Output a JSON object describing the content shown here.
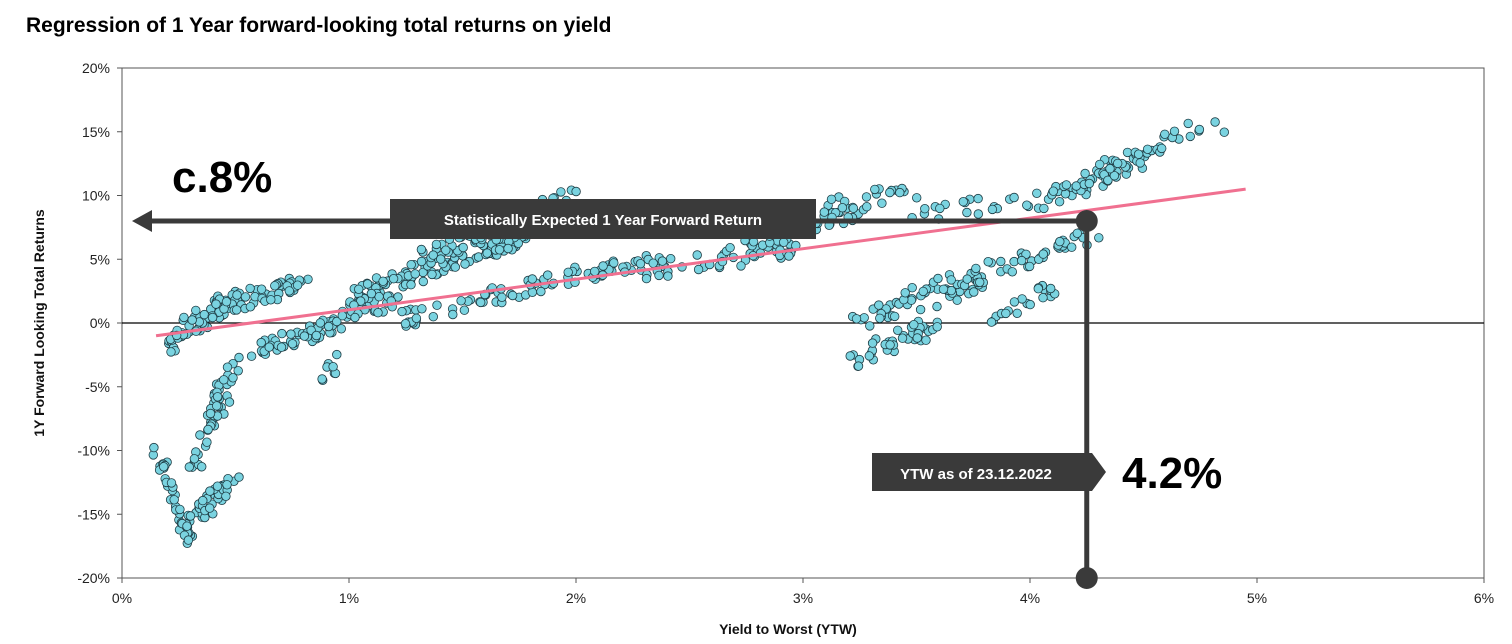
{
  "chart_data": {
    "type": "scatter",
    "title": "Regression of 1 Year forward-looking total returns on yield",
    "xlabel": "Yield to Worst (YTW)",
    "ylabel": "1Y Forward Looking Total Returns",
    "xlim": [
      0,
      6
    ],
    "ylim": [
      -20,
      20
    ],
    "x_ticks": [
      "0%",
      "1%",
      "2%",
      "3%",
      "4%",
      "5%",
      "6%"
    ],
    "y_ticks": [
      "20%",
      "15%",
      "10%",
      "5%",
      "0%",
      "-5%",
      "-10%",
      "-15%",
      "-20%"
    ],
    "grid": false,
    "colors": {
      "points": "#7ad3e0",
      "point_edge": "#1e3c44",
      "regression": "#f07090",
      "callout": "#3a3a3a",
      "zero_line": "#000000"
    },
    "series": [
      {
        "clusters": [
          {
            "x": [
              0.15,
              0.3
            ],
            "y": [
              -10,
              -17
            ],
            "n": 40
          },
          {
            "x": [
              0.3,
              0.5
            ],
            "y": [
              -16,
              -12
            ],
            "n": 40
          },
          {
            "x": [
              0.32,
              0.42
            ],
            "y": [
              -12,
              -5
            ],
            "n": 30
          },
          {
            "x": [
              0.4,
              0.5
            ],
            "y": [
              -8,
              -3
            ],
            "n": 25
          },
          {
            "x": [
              0.2,
              0.3
            ],
            "y": [
              -2,
              0
            ],
            "n": 20
          },
          {
            "x": [
              0.25,
              0.5
            ],
            "y": [
              -1,
              2
            ],
            "n": 40
          },
          {
            "x": [
              0.35,
              0.8
            ],
            "y": [
              1,
              3
            ],
            "n": 60
          },
          {
            "x": [
              0.6,
              1.0
            ],
            "y": [
              -2,
              0
            ],
            "n": 40
          },
          {
            "x": [
              0.8,
              1.2
            ],
            "y": [
              -1,
              2
            ],
            "n": 40
          },
          {
            "x": [
              1.0,
              1.8
            ],
            "y": [
              2,
              7
            ],
            "n": 110
          },
          {
            "x": [
              1.3,
              2.0
            ],
            "y": [
              5,
              10
            ],
            "n": 70
          },
          {
            "x": [
              1.2,
              1.8
            ],
            "y": [
              0,
              3
            ],
            "n": 40
          },
          {
            "x": [
              0.85,
              0.95
            ],
            "y": [
              -4.5,
              -3
            ],
            "n": 8
          },
          {
            "x": [
              1.8,
              2.4
            ],
            "y": [
              3,
              5
            ],
            "n": 50
          },
          {
            "x": [
              2.3,
              3.0
            ],
            "y": [
              4,
              6
            ],
            "n": 40
          },
          {
            "x": [
              2.7,
              3.3
            ],
            "y": [
              6,
              9
            ],
            "n": 40
          },
          {
            "x": [
              3.1,
              3.5
            ],
            "y": [
              9,
              10.5
            ],
            "n": 20
          },
          {
            "x": [
              3.5,
              4.2
            ],
            "y": [
              8.5,
              10
            ],
            "n": 25
          },
          {
            "x": [
              3.2,
              3.6
            ],
            "y": [
              -3,
              0
            ],
            "n": 40
          },
          {
            "x": [
              3.2,
              3.8
            ],
            "y": [
              0,
              3
            ],
            "n": 40
          },
          {
            "x": [
              3.4,
              3.8
            ],
            "y": [
              2,
              4
            ],
            "n": 25
          },
          {
            "x": [
              3.8,
              4.1
            ],
            "y": [
              0,
              3
            ],
            "n": 20
          },
          {
            "x": [
              3.8,
              4.3
            ],
            "y": [
              4,
              7
            ],
            "n": 35
          },
          {
            "x": [
              4.0,
              4.5
            ],
            "y": [
              9,
              13
            ],
            "n": 40
          },
          {
            "x": [
              4.2,
              4.6
            ],
            "y": [
              11,
              14
            ],
            "n": 30
          },
          {
            "x": [
              4.5,
              4.95
            ],
            "y": [
              14,
              16
            ],
            "n": 12
          }
        ]
      }
    ],
    "regression_line": {
      "x": [
        0.15,
        4.95
      ],
      "y": [
        -1,
        10.5
      ]
    },
    "annotations": {
      "expected_return_label": "Statistically Expected 1 Year Forward Return",
      "expected_return_value": "c.8%",
      "expected_return_y": 8,
      "ytw_label": "YTW as of 23.12.2022",
      "ytw_value": "4.2%",
      "ytw_x": 4.25
    }
  }
}
